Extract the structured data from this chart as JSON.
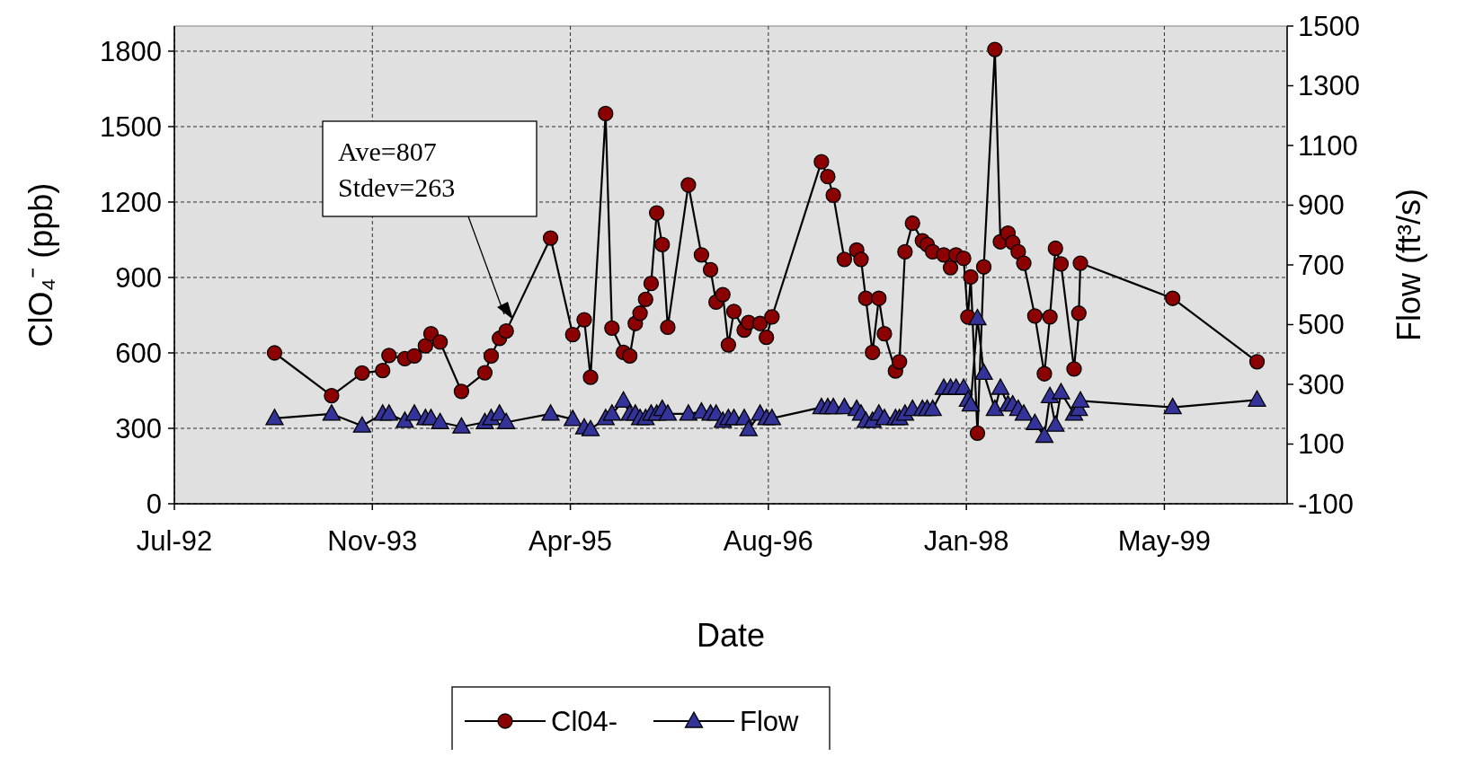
{
  "chart_data": {
    "type": "line",
    "xlabel": "Date",
    "ylabel": "ClO₄⁻ (ppb)",
    "y2label": "Flow  (ft³/s)",
    "xlim": [
      "1992-07-15",
      "2000-03-25"
    ],
    "xticks": [
      {
        "value": "1992-07-15",
        "label": "Jul-92"
      },
      {
        "value": "1993-11-27",
        "label": "Nov-93"
      },
      {
        "value": "1995-04-11",
        "label": "Apr-95"
      },
      {
        "value": "1996-08-23",
        "label": "Aug-96"
      },
      {
        "value": "1998-01-05",
        "label": "Jan-98"
      },
      {
        "value": "1999-05-20",
        "label": "May-99"
      }
    ],
    "ylim": [
      0,
      1900
    ],
    "yticks": [
      0,
      300,
      600,
      900,
      1200,
      1500,
      1800
    ],
    "y2lim": [
      -100,
      1500
    ],
    "y2ticks": [
      -100,
      100,
      300,
      500,
      700,
      900,
      1100,
      1300,
      1500
    ],
    "grid": true,
    "legend": "bottom",
    "line_style": "solid",
    "annotations": [
      "Ave=807\nStdev=263"
    ],
    "x": [
      "1993-03-25",
      "1993-08-16",
      "1993-11-01",
      "1993-12-23",
      "1994-01-08",
      "1994-02-17",
      "1994-03-13",
      "1994-04-10",
      "1994-04-24",
      "1994-05-17",
      "1994-07-10",
      "1994-09-07",
      "1994-09-23",
      "1994-10-14",
      "1994-10-31",
      "1995-02-20",
      "1995-04-17",
      "1995-05-16",
      "1995-06-01",
      "1995-07-09",
      "1995-07-25",
      "1995-08-23",
      "1995-09-08",
      "1995-09-22",
      "1995-10-04",
      "1995-10-18",
      "1995-11-01",
      "1995-11-15",
      "1995-11-29",
      "1995-12-13",
      "1996-02-03",
      "1996-03-07",
      "1996-03-30",
      "1996-04-13",
      "1996-04-30",
      "1996-05-14",
      "1996-05-28",
      "1996-06-23",
      "1996-07-04",
      "1996-08-02",
      "1996-08-18",
      "1996-09-01",
      "1997-01-04",
      "1997-01-20",
      "1997-02-03",
      "1997-03-03",
      "1997-04-03",
      "1997-04-14",
      "1997-04-26",
      "1997-05-13",
      "1997-05-29",
      "1997-06-12",
      "1997-07-10",
      "1997-07-20",
      "1997-08-03",
      "1997-08-22",
      "1997-09-16",
      "1997-09-28",
      "1997-10-12",
      "1997-11-09",
      "1997-11-26",
      "1997-12-10",
      "1997-12-29",
      "1998-01-09",
      "1998-01-16",
      "1998-02-02",
      "1998-02-18",
      "1998-03-18",
      "1998-04-01",
      "1998-04-20",
      "1998-05-02",
      "1998-05-16",
      "1998-05-30",
      "1998-06-27",
      "1998-07-21",
      "1998-08-04",
      "1998-08-18",
      "1998-09-01",
      "1998-10-04",
      "1998-10-16",
      "1998-10-20",
      "1999-06-10",
      "2000-01-09"
    ],
    "series": [
      {
        "name": "Cl04-",
        "color": "#8b0000",
        "marker": "circle",
        "values": [
          600,
          430,
          520,
          530,
          590,
          577,
          588,
          628,
          676,
          643,
          447,
          521,
          588,
          658,
          687,
          1057,
          673,
          732,
          503,
          1552,
          699,
          602,
          588,
          717,
          758,
          813,
          876,
          1157,
          1031,
          702,
          1268,
          990,
          931,
          802,
          832,
          632,
          765,
          691,
          721,
          717,
          662,
          743,
          1360,
          1301,
          1227,
          972,
          1009,
          972,
          817,
          602,
          817,
          676,
          528,
          565,
          1002,
          1116,
          1046,
          1031,
          1002,
          990,
          939,
          990,
          976,
          743,
          902,
          281,
          942,
          1807,
          1042,
          1076,
          1039,
          1002,
          957,
          747,
          517,
          743,
          1016,
          954,
          536,
          758,
          957,
          817,
          565
        ]
      },
      {
        "name": "Flow",
        "color": "#333399",
        "marker": "triangle",
        "axis": "y2",
        "values": [
          186,
          201,
          161,
          201,
          201,
          177,
          201,
          186,
          186,
          173,
          158,
          173,
          186,
          201,
          173,
          201,
          183,
          155,
          149,
          186,
          201,
          245,
          201,
          201,
          186,
          186,
          201,
          201,
          217,
          201,
          201,
          208,
          201,
          201,
          177,
          186,
          186,
          186,
          149,
          201,
          186,
          186,
          223,
          223,
          223,
          223,
          217,
          201,
          177,
          177,
          201,
          186,
          186,
          186,
          201,
          217,
          217,
          217,
          217,
          288,
          288,
          288,
          288,
          248,
          232,
          521,
          338,
          217,
          288,
          232,
          232,
          217,
          201,
          170,
          127,
          260,
          164,
          273,
          201,
          217,
          245,
          223,
          248
        ]
      }
    ]
  }
}
